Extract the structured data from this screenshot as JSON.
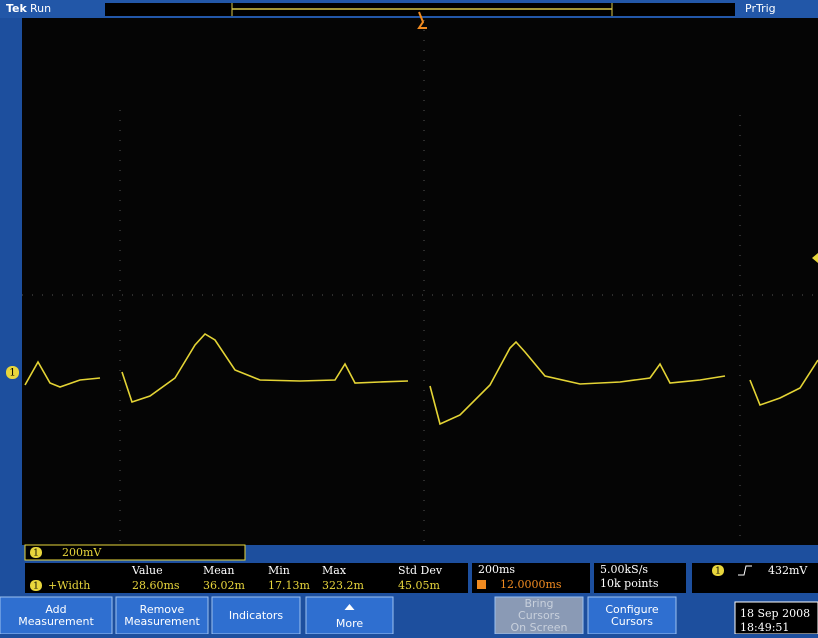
{
  "header": {
    "brand": "Tek",
    "status": "Run",
    "trigger_mode": "PrTrig"
  },
  "channel": {
    "marker": "1",
    "scale": "200mV"
  },
  "measurement": {
    "channel": "1",
    "name": "+Width",
    "columns": [
      {
        "label": "Value",
        "value": "28.60ms"
      },
      {
        "label": "Mean",
        "value": "36.02m"
      },
      {
        "label": "Min",
        "value": "17.13m"
      },
      {
        "label": "Max",
        "value": "323.2m"
      },
      {
        "label": "Std Dev",
        "value": "45.05m"
      }
    ]
  },
  "timebase": {
    "scale": "200ms",
    "position": "12.0000ms"
  },
  "acquisition": {
    "rate": "5.00kS/s",
    "length": "10k points"
  },
  "trigger": {
    "channel": "1",
    "level": "432mV"
  },
  "buttons": [
    {
      "lines": [
        "Add",
        "Measurement"
      ]
    },
    {
      "lines": [
        "Remove",
        "Measurement"
      ]
    },
    {
      "lines": [
        "Indicators"
      ]
    },
    {
      "lines": [
        "More"
      ]
    },
    {
      "lines": [
        "Bring",
        "Cursors",
        "On Screen"
      ]
    },
    {
      "lines": [
        "Configure",
        "Cursors"
      ]
    }
  ],
  "datetime": {
    "date": "18 Sep 2008",
    "time": "18:49:51"
  }
}
